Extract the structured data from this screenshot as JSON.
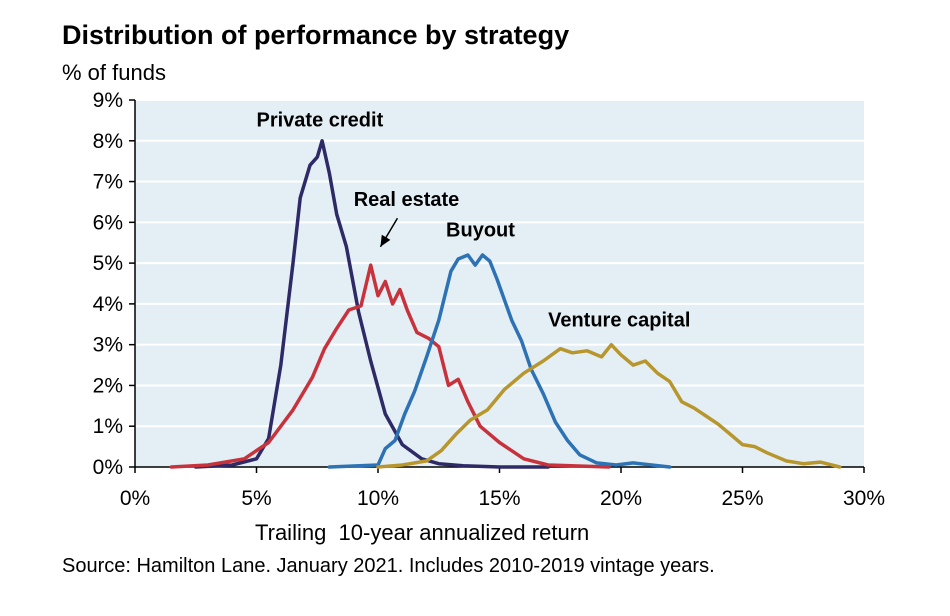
{
  "chart_data": {
    "type": "line",
    "title": "Distribution of performance by strategy",
    "subtitle": "% of funds",
    "xlabel": "Trailing  10-year annualized return",
    "ylabel": "% of funds",
    "source": "Source: Hamilton Lane. January 2021. Includes 2010-2019 vintage years.",
    "xlim": [
      0,
      30
    ],
    "ylim": [
      0,
      9
    ],
    "x_ticks": [
      0,
      5,
      10,
      15,
      20,
      25,
      30
    ],
    "x_tick_labels": [
      "0%",
      "5%",
      "10%",
      "15%",
      "20%",
      "25%",
      "30%"
    ],
    "y_ticks": [
      0,
      1,
      2,
      3,
      4,
      5,
      6,
      7,
      8,
      9
    ],
    "y_tick_labels": [
      "0%",
      "1%",
      "2%",
      "3%",
      "4%",
      "5%",
      "6%",
      "7%",
      "8%",
      "9%"
    ],
    "grid": true,
    "series": [
      {
        "name": "Private credit",
        "color": "#2e2a66",
        "x": [
          2.5,
          4.0,
          5.0,
          5.5,
          6.0,
          6.5,
          6.8,
          7.2,
          7.5,
          7.7,
          8.0,
          8.3,
          8.7,
          9.2,
          9.7,
          10.3,
          11.0,
          11.8,
          12.5,
          13.5,
          15.0,
          17.0
        ],
        "y": [
          0.0,
          0.05,
          0.2,
          0.7,
          2.5,
          5.0,
          6.6,
          7.4,
          7.6,
          8.0,
          7.2,
          6.2,
          5.4,
          3.8,
          2.6,
          1.3,
          0.55,
          0.2,
          0.08,
          0.03,
          0.0,
          0.0
        ]
      },
      {
        "name": "Real estate",
        "color": "#c8323c",
        "x": [
          1.5,
          3.0,
          4.5,
          5.5,
          6.5,
          7.3,
          7.8,
          8.3,
          8.8,
          9.3,
          9.7,
          10.0,
          10.3,
          10.6,
          10.9,
          11.2,
          11.6,
          12.1,
          12.5,
          12.9,
          13.3,
          13.7,
          14.2,
          15.0,
          16.0,
          17.0,
          19.5
        ],
        "y": [
          0.0,
          0.05,
          0.2,
          0.6,
          1.4,
          2.2,
          2.9,
          3.4,
          3.85,
          3.95,
          4.95,
          4.2,
          4.55,
          4.0,
          4.35,
          3.85,
          3.3,
          3.15,
          2.95,
          2.0,
          2.15,
          1.6,
          1.0,
          0.6,
          0.2,
          0.05,
          0.0
        ]
      },
      {
        "name": "Buyout",
        "color": "#2c72b4",
        "x": [
          8.0,
          10.0,
          10.3,
          10.7,
          11.1,
          11.5,
          12.0,
          12.5,
          13.0,
          13.3,
          13.7,
          14.0,
          14.3,
          14.6,
          14.9,
          15.2,
          15.5,
          15.9,
          16.3,
          16.8,
          17.3,
          17.8,
          18.3,
          19.0,
          19.8,
          20.5,
          22.0
        ],
        "y": [
          0.0,
          0.05,
          0.45,
          0.65,
          1.3,
          1.85,
          2.7,
          3.6,
          4.8,
          5.1,
          5.2,
          4.95,
          5.2,
          5.05,
          4.6,
          4.1,
          3.6,
          3.1,
          2.4,
          1.8,
          1.1,
          0.65,
          0.3,
          0.1,
          0.05,
          0.1,
          0.0
        ]
      },
      {
        "name": "Venture capital",
        "color": "#b8962e",
        "x": [
          10.0,
          11.0,
          12.0,
          12.6,
          13.2,
          13.8,
          14.5,
          15.2,
          16.0,
          16.8,
          17.5,
          18.0,
          18.6,
          19.2,
          19.6,
          20.0,
          20.5,
          21.0,
          21.5,
          22.0,
          22.5,
          23.0,
          23.5,
          24.0,
          24.5,
          25.0,
          25.5,
          26.0,
          26.8,
          27.5,
          28.2,
          29.0
        ],
        "y": [
          0.0,
          0.05,
          0.15,
          0.4,
          0.8,
          1.15,
          1.4,
          1.9,
          2.3,
          2.6,
          2.9,
          2.8,
          2.85,
          2.7,
          3.0,
          2.75,
          2.5,
          2.6,
          2.3,
          2.1,
          1.6,
          1.45,
          1.25,
          1.05,
          0.8,
          0.55,
          0.5,
          0.35,
          0.15,
          0.08,
          0.12,
          0.0
        ]
      }
    ],
    "annotations": [
      {
        "text": "Private credit",
        "x": 5.0,
        "y": 8.35
      },
      {
        "text": "Real estate",
        "x": 9.0,
        "y": 6.4
      },
      {
        "text": "Buyout",
        "x": 12.8,
        "y": 5.65
      },
      {
        "text": "Venture capital",
        "x": 17.0,
        "y": 3.45
      }
    ],
    "arrow": {
      "from": [
        10.8,
        6.1
      ],
      "to": [
        10.1,
        5.4
      ]
    }
  }
}
